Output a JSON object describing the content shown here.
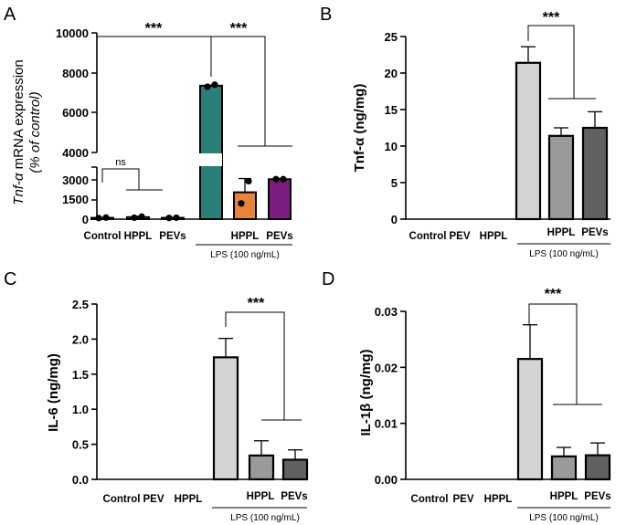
{
  "chart_data": [
    {
      "panel": "A",
      "type": "bar",
      "title": "",
      "ylabel_italic": "Tnf-α",
      "ylabel_rest": " mRNA expression",
      "ylabel_line2": "(% of control)",
      "categories": [
        "Control",
        "HPPL",
        "PEVs",
        "",
        "HPPL",
        "PEVs"
      ],
      "values": [
        100,
        150,
        100,
        7350,
        2050,
        3050
      ],
      "errors": [
        0,
        60,
        30,
        30,
        1050,
        60
      ],
      "points": [
        [
          80,
          120
        ],
        [
          110,
          190
        ],
        [
          90,
          110
        ],
        [
          7300,
          7400
        ],
        [
          1200,
          2900
        ],
        [
          3050,
          3050
        ]
      ],
      "colors": [
        "#ffffff",
        "#ffffff",
        "#ffffff",
        "#2a7f78",
        "#e8833a",
        "#7b1c7f"
      ],
      "ytick_labels": [
        "0",
        "1500",
        "3000",
        "4000",
        "6000",
        "8000",
        "10000"
      ],
      "ybreak": [
        3500,
        3800
      ],
      "ylim": [
        0,
        10000
      ],
      "group_label": "LPS (100 ng/mL)",
      "annotations": [
        "***",
        "***",
        "ns"
      ]
    },
    {
      "panel": "B",
      "type": "bar",
      "ylabel": "Tnf-α (ng/mg)",
      "categories": [
        "Control",
        "PEV",
        "HPPL",
        "",
        "HPPL",
        "PEVs"
      ],
      "values": [
        0,
        0,
        0,
        21.4,
        11.4,
        12.5
      ],
      "errors": [
        0,
        0,
        0,
        2.2,
        1.1,
        2.2
      ],
      "colors": [
        "#d4d4d4",
        "#d4d4d4",
        "#d4d4d4",
        "#d4d4d4",
        "#9a9a9a",
        "#616161"
      ],
      "ytick_labels": [
        "0",
        "5",
        "10",
        "15",
        "20",
        "25"
      ],
      "ylim": [
        0,
        25
      ],
      "group_label": "LPS (100 ng/mL)",
      "annotations": [
        "***"
      ]
    },
    {
      "panel": "C",
      "type": "bar",
      "ylabel": "IL-6 (ng/mg)",
      "categories": [
        "Control",
        "PEV",
        "HPPL",
        "",
        "HPPL",
        "PEVs"
      ],
      "values": [
        0,
        0,
        0,
        1.74,
        0.34,
        0.28
      ],
      "errors": [
        0,
        0,
        0,
        0.27,
        0.21,
        0.14
      ],
      "colors": [
        "#d4d4d4",
        "#d4d4d4",
        "#d4d4d4",
        "#d4d4d4",
        "#9a9a9a",
        "#616161"
      ],
      "ytick_labels": [
        "0.0",
        "0.5",
        "1.0",
        "1.5",
        "2.0",
        "2.5"
      ],
      "ylim": [
        0,
        2.5
      ],
      "group_label": "LPS (100 ng/mL)",
      "annotations": [
        "***"
      ]
    },
    {
      "panel": "D",
      "type": "bar",
      "ylabel": "IL-1β (ng/mg)",
      "categories": [
        "Control",
        "PEV",
        "HPPL",
        "",
        "HPPL",
        "PEVs"
      ],
      "values": [
        0,
        0,
        0,
        0.0215,
        0.0041,
        0.0043
      ],
      "errors": [
        0,
        0,
        0,
        0.0061,
        0.0016,
        0.0022
      ],
      "colors": [
        "#d4d4d4",
        "#d4d4d4",
        "#d4d4d4",
        "#d4d4d4",
        "#9a9a9a",
        "#616161"
      ],
      "ytick_labels": [
        "0.00",
        "0.01",
        "0.02",
        "0.03"
      ],
      "ylim": [
        0,
        0.03
      ],
      "group_label": "LPS (100 ng/mL)",
      "annotations": [
        "***"
      ]
    }
  ]
}
